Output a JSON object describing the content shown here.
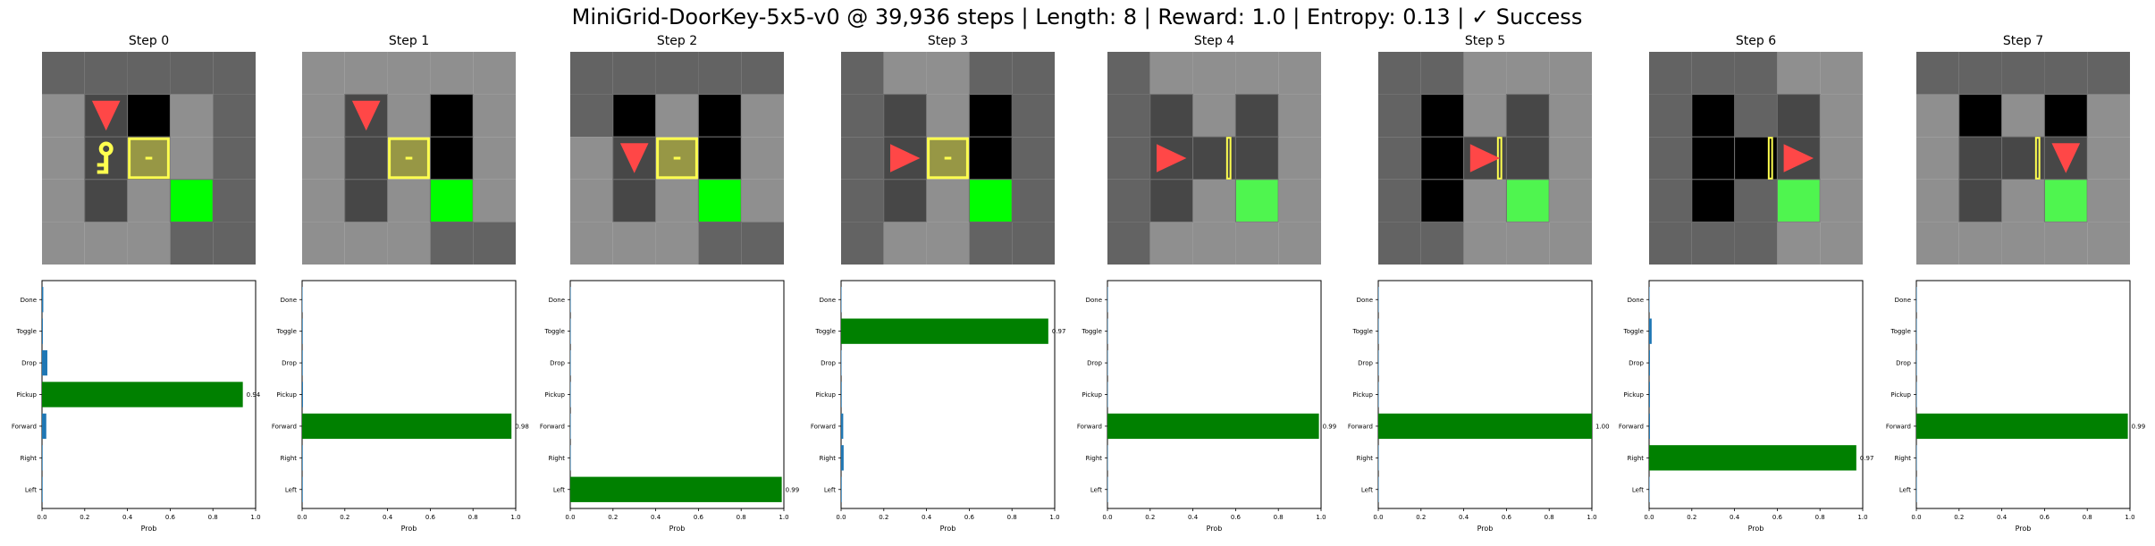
{
  "figure": {
    "title": "MiniGrid-DoorKey-5x5-v0 @ 39,936 steps | Length: 8 | Reward: 1.0 | Entropy: 0.13 | ✓ Success"
  },
  "colors": {
    "dark_wall": "#636363",
    "light_wall": "#8f8f8f",
    "floor_cell": "#474747",
    "empty_black": "#000000",
    "goal_green": "#00ff00",
    "goal_dim": "#4ff54f",
    "agent_red": "#ff4747",
    "key_yellow": "#ffff4f",
    "door_fill": "#979745",
    "bar_selected": "#008000",
    "bar_other": "#1f77b4"
  },
  "actions": [
    "Left",
    "Right",
    "Forward",
    "Pickup",
    "Drop",
    "Toggle",
    "Done"
  ],
  "chart_data": [
    {
      "type": "bar",
      "orientation": "horizontal",
      "title": "Step 0",
      "xlabel": "Prob",
      "xlim": [
        0,
        1
      ],
      "xticks": [
        "0.0",
        "0.2",
        "0.4",
        "0.6",
        "0.8",
        "1.0"
      ],
      "categories": [
        "Left",
        "Right",
        "Forward",
        "Pickup",
        "Drop",
        "Toggle",
        "Done"
      ],
      "values": [
        0.003,
        0.003,
        0.02,
        0.94,
        0.025,
        0.004,
        0.006
      ],
      "selected": "Pickup",
      "selected_label": "0.94",
      "view": {
        "rows": [
          [
            "D",
            "D",
            "D",
            "D",
            "D"
          ],
          [
            "L",
            "F",
            "B",
            "L",
            "D"
          ],
          [
            "L",
            "F",
            "B",
            "L",
            "D"
          ],
          [
            "L",
            "F",
            "L",
            "G",
            "D"
          ],
          [
            "L",
            "L",
            "L",
            "D",
            "D"
          ]
        ],
        "agent": {
          "row": 1,
          "col": 1,
          "dir": "down"
        },
        "key": {
          "row": 2,
          "col": 1
        },
        "door": {
          "row": 2,
          "col": 2,
          "state": "locked"
        }
      }
    },
    {
      "type": "bar",
      "orientation": "horizontal",
      "title": "Step 1",
      "xlabel": "Prob",
      "xlim": [
        0,
        1
      ],
      "xticks": [
        "0.0",
        "0.2",
        "0.4",
        "0.6",
        "0.8",
        "1.0"
      ],
      "categories": [
        "Left",
        "Right",
        "Forward",
        "Pickup",
        "Drop",
        "Toggle",
        "Done"
      ],
      "values": [
        0.003,
        0.003,
        0.98,
        0.004,
        0.003,
        0.003,
        0.002
      ],
      "selected": "Forward",
      "selected_label": "0.98",
      "view": {
        "rows": [
          [
            "L",
            "L",
            "L",
            "L",
            "L"
          ],
          [
            "L",
            "F",
            "L",
            "B",
            "L"
          ],
          [
            "L",
            "F",
            "L",
            "B",
            "L"
          ],
          [
            "L",
            "F",
            "L",
            "G",
            "L"
          ],
          [
            "L",
            "L",
            "L",
            "D",
            "D"
          ]
        ],
        "agent": {
          "row": 1,
          "col": 1,
          "dir": "down"
        },
        "door": {
          "row": 2,
          "col": 2,
          "state": "locked"
        }
      }
    },
    {
      "type": "bar",
      "orientation": "horizontal",
      "title": "Step 2",
      "xlabel": "Prob",
      "xlim": [
        0,
        1
      ],
      "xticks": [
        "0.0",
        "0.2",
        "0.4",
        "0.6",
        "0.8",
        "1.0"
      ],
      "categories": [
        "Left",
        "Right",
        "Forward",
        "Pickup",
        "Drop",
        "Toggle",
        "Done"
      ],
      "values": [
        0.99,
        0.002,
        0.002,
        0.002,
        0.001,
        0.002,
        0.001
      ],
      "selected": "Left",
      "selected_label": "0.99",
      "view": {
        "rows": [
          [
            "D",
            "D",
            "D",
            "D",
            "D"
          ],
          [
            "D",
            "B",
            "L",
            "B",
            "L"
          ],
          [
            "L",
            "F",
            "L",
            "B",
            "L"
          ],
          [
            "L",
            "F",
            "L",
            "G",
            "L"
          ],
          [
            "L",
            "L",
            "L",
            "D",
            "D"
          ]
        ],
        "agent": {
          "row": 2,
          "col": 1,
          "dir": "down"
        },
        "door": {
          "row": 2,
          "col": 2,
          "state": "locked"
        }
      }
    },
    {
      "type": "bar",
      "orientation": "horizontal",
      "title": "Step 3",
      "xlabel": "Prob",
      "xlim": [
        0,
        1
      ],
      "xticks": [
        "0.0",
        "0.2",
        "0.4",
        "0.6",
        "0.8",
        "1.0"
      ],
      "categories": [
        "Left",
        "Right",
        "Forward",
        "Pickup",
        "Drop",
        "Toggle",
        "Done"
      ],
      "values": [
        0.003,
        0.012,
        0.01,
        0.003,
        0.002,
        0.97,
        0.001
      ],
      "selected": "Toggle",
      "selected_label": "0.97",
      "view": {
        "rows": [
          [
            "D",
            "L",
            "L",
            "D",
            "D"
          ],
          [
            "D",
            "F",
            "L",
            "B",
            "D"
          ],
          [
            "D",
            "F",
            "L",
            "B",
            "D"
          ],
          [
            "D",
            "F",
            "L",
            "G",
            "D"
          ],
          [
            "D",
            "L",
            "L",
            "D",
            "D"
          ]
        ],
        "agent": {
          "row": 2,
          "col": 1,
          "dir": "right"
        },
        "door": {
          "row": 2,
          "col": 2,
          "state": "locked"
        }
      }
    },
    {
      "type": "bar",
      "orientation": "horizontal",
      "title": "Step 4",
      "xlabel": "Prob",
      "xlim": [
        0,
        1
      ],
      "xticks": [
        "0.0",
        "0.2",
        "0.4",
        "0.6",
        "0.8",
        "1.0"
      ],
      "categories": [
        "Left",
        "Right",
        "Forward",
        "Pickup",
        "Drop",
        "Toggle",
        "Done"
      ],
      "values": [
        0.002,
        0.002,
        0.99,
        0.002,
        0.001,
        0.002,
        0.001
      ],
      "selected": "Forward",
      "selected_label": "0.99",
      "view": {
        "rows": [
          [
            "D",
            "L",
            "L",
            "L",
            "L"
          ],
          [
            "D",
            "F",
            "L",
            "F",
            "L"
          ],
          [
            "D",
            "F",
            "F",
            "F",
            "L"
          ],
          [
            "D",
            "F",
            "L",
            "G",
            "L"
          ],
          [
            "D",
            "L",
            "L",
            "L",
            "L"
          ]
        ],
        "agent": {
          "row": 2,
          "col": 1,
          "dir": "right"
        },
        "door": {
          "row": 2,
          "col": 2,
          "state": "open"
        }
      }
    },
    {
      "type": "bar",
      "orientation": "horizontal",
      "title": "Step 5",
      "xlabel": "Prob",
      "xlim": [
        0,
        1
      ],
      "xticks": [
        "0.0",
        "0.2",
        "0.4",
        "0.6",
        "0.8",
        "1.0"
      ],
      "categories": [
        "Left",
        "Right",
        "Forward",
        "Pickup",
        "Drop",
        "Toggle",
        "Done"
      ],
      "values": [
        0.001,
        0.001,
        1.0,
        0.001,
        0.001,
        0.001,
        0.001
      ],
      "selected": "Forward",
      "selected_label": "1.00",
      "view": {
        "rows": [
          [
            "D",
            "D",
            "L",
            "L",
            "L"
          ],
          [
            "D",
            "B",
            "L",
            "F",
            "L"
          ],
          [
            "D",
            "B",
            "F",
            "F",
            "L"
          ],
          [
            "D",
            "B",
            "L",
            "G",
            "L"
          ],
          [
            "D",
            "D",
            "L",
            "L",
            "L"
          ]
        ],
        "agent": {
          "row": 2,
          "col": 2,
          "dir": "right"
        },
        "door": {
          "row": 2,
          "col": 2,
          "state": "open"
        }
      }
    },
    {
      "type": "bar",
      "orientation": "horizontal",
      "title": "Step 6",
      "xlabel": "Prob",
      "xlim": [
        0,
        1
      ],
      "xticks": [
        "0.0",
        "0.2",
        "0.4",
        "0.6",
        "0.8",
        "1.0"
      ],
      "categories": [
        "Left",
        "Right",
        "Forward",
        "Pickup",
        "Drop",
        "Toggle",
        "Done"
      ],
      "values": [
        0.002,
        0.97,
        0.004,
        0.004,
        0.004,
        0.012,
        0.001
      ],
      "selected": "Right",
      "selected_label": "0.97",
      "view": {
        "rows": [
          [
            "D",
            "D",
            "D",
            "L",
            "L"
          ],
          [
            "D",
            "B",
            "D",
            "F",
            "L"
          ],
          [
            "D",
            "B",
            "B",
            "F",
            "L"
          ],
          [
            "D",
            "B",
            "D",
            "G",
            "L"
          ],
          [
            "D",
            "D",
            "D",
            "L",
            "L"
          ]
        ],
        "agent": {
          "row": 2,
          "col": 3,
          "dir": "right"
        },
        "door": {
          "row": 2,
          "col": 2,
          "state": "open"
        }
      }
    },
    {
      "type": "bar",
      "orientation": "horizontal",
      "title": "Step 7",
      "xlabel": "Prob",
      "xlim": [
        0,
        1
      ],
      "xticks": [
        "0.0",
        "0.2",
        "0.4",
        "0.6",
        "0.8",
        "1.0"
      ],
      "categories": [
        "Left",
        "Right",
        "Forward",
        "Pickup",
        "Drop",
        "Toggle",
        "Done"
      ],
      "values": [
        0.001,
        0.002,
        0.99,
        0.002,
        0.001,
        0.002,
        0.001
      ],
      "selected": "Forward",
      "selected_label": "0.99",
      "view": {
        "rows": [
          [
            "D",
            "D",
            "D",
            "D",
            "D"
          ],
          [
            "L",
            "B",
            "L",
            "B",
            "L"
          ],
          [
            "L",
            "F",
            "F",
            "F",
            "L"
          ],
          [
            "L",
            "F",
            "L",
            "G",
            "L"
          ],
          [
            "L",
            "L",
            "L",
            "L",
            "L"
          ]
        ],
        "agent": {
          "row": 2,
          "col": 3,
          "dir": "down"
        },
        "door": {
          "row": 2,
          "col": 2,
          "state": "open"
        }
      }
    }
  ]
}
